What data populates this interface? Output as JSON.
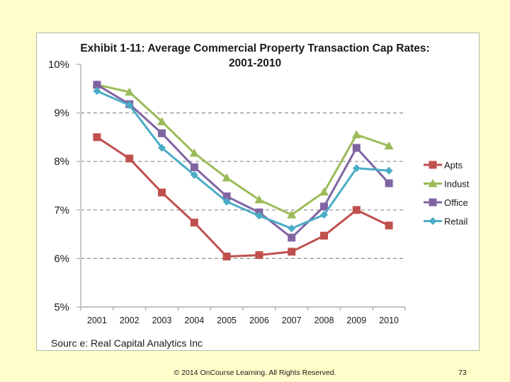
{
  "slide": {
    "source": "Sourc e: Real Capital Analytics Inc",
    "footer": "© 2014 OnCourse Learning. All Rights Reserved.",
    "page_number": "73"
  },
  "chart_data": {
    "type": "line",
    "title_line1": "Exhibit 1-11: Average Commercial Property Transaction Cap Rates:",
    "title_line2": "2001-2010",
    "xlabel": "",
    "ylabel": "",
    "categories": [
      "2001",
      "2002",
      "2003",
      "2004",
      "2005",
      "2006",
      "2007",
      "2008",
      "2009",
      "2010"
    ],
    "ylim": [
      5,
      10
    ],
    "yticks": [
      5,
      6,
      7,
      8,
      9,
      10
    ],
    "ytick_labels": [
      "5%",
      "6%",
      "7%",
      "8%",
      "9%",
      "10%"
    ],
    "grid": "horizontal-dashed",
    "legend_position": "right",
    "series": [
      {
        "name": "Apts",
        "color": "#C0504D",
        "marker": "square",
        "values": [
          8.5,
          8.06,
          7.36,
          6.74,
          6.04,
          6.07,
          6.14,
          6.47,
          7.0,
          6.68
        ]
      },
      {
        "name": "Indust",
        "color": "#9BBB59",
        "marker": "triangle",
        "values": [
          9.58,
          9.43,
          8.82,
          8.17,
          7.66,
          7.21,
          6.9,
          7.37,
          8.55,
          8.32
        ]
      },
      {
        "name": "Office",
        "color": "#8064A2",
        "marker": "square",
        "values": [
          9.58,
          9.18,
          8.58,
          7.88,
          7.28,
          6.95,
          6.43,
          7.07,
          8.28,
          7.55
        ]
      },
      {
        "name": "Retail",
        "color": "#4BACC6",
        "marker": "diamond",
        "values": [
          9.45,
          9.16,
          8.28,
          7.72,
          7.17,
          6.88,
          6.62,
          6.9,
          7.86,
          7.81
        ]
      }
    ]
  }
}
